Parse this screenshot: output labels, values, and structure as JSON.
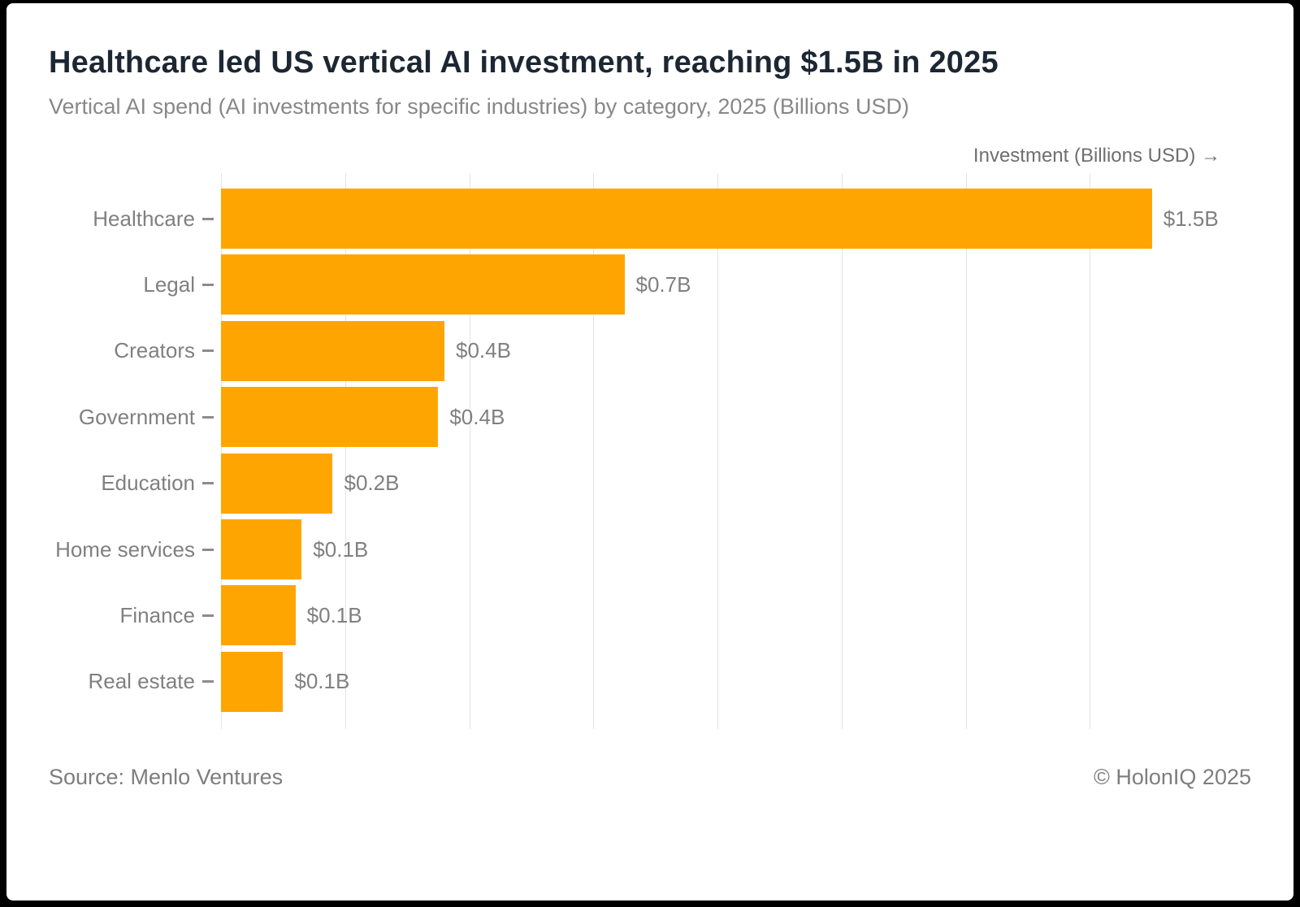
{
  "header": {
    "title": "Healthcare led US vertical AI investment, reaching $1.5B in 2025",
    "subtitle": "Vertical AI spend (AI investments for specific industries) by category, 2025 (Billions USD)"
  },
  "chart_data": {
    "type": "bar",
    "orientation": "horizontal",
    "title": "Healthcare led US vertical AI investment, reaching $1.5B in 2025",
    "xlabel": "Investment (Billions USD) →",
    "ylabel": "",
    "categories": [
      "Healthcare",
      "Legal",
      "Creators",
      "Government",
      "Education",
      "Home services",
      "Finance",
      "Real estate"
    ],
    "values": [
      1.5,
      0.65,
      0.36,
      0.35,
      0.18,
      0.13,
      0.12,
      0.1
    ],
    "value_labels": [
      "$1.5B",
      "$0.7B",
      "$0.4B",
      "$0.4B",
      "$0.2B",
      "$0.1B",
      "$0.1B",
      "$0.1B"
    ],
    "xlim": [
      0,
      1.66
    ],
    "gridlines": [
      0,
      0.2,
      0.4,
      0.6,
      0.8,
      1.0,
      1.2,
      1.4
    ],
    "grid_on": true,
    "legend": "none",
    "bar_color": "#FFA502",
    "label_color": "#808080",
    "gridline_color": "#e4e4e4"
  },
  "footer": {
    "source": "Source: Menlo Ventures",
    "copyright": "© HolonIQ 2025"
  }
}
